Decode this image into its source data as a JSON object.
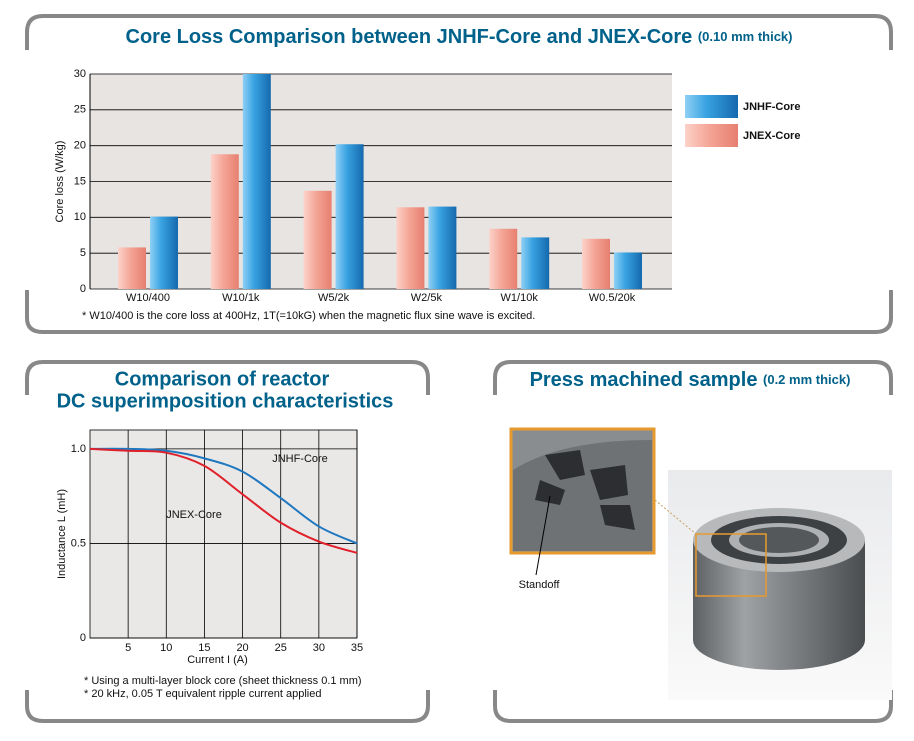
{
  "chart_data": [
    {
      "type": "bar",
      "title": "Core Loss Comparison between JNHF-Core and JNEX-Core",
      "subtitle": "(0.10 mm thick)",
      "y_label": "Core loss (W/kg)",
      "categories": [
        "W10/400",
        "W10/1k",
        "W5/2k",
        "W2/5k",
        "W1/10k",
        "W0.5/20k"
      ],
      "series": [
        {
          "name": "JNHF-Core",
          "color": "#1f7fc4",
          "values": [
            10.1,
            30,
            20.2,
            11.5,
            7.2,
            5.1
          ]
        },
        {
          "name": "JNEX-Core",
          "color": "#f09a8c",
          "values": [
            5.8,
            18.8,
            13.7,
            11.4,
            8.4,
            7.0
          ]
        }
      ],
      "ylim": [
        0,
        30
      ],
      "yticks": [
        0,
        5,
        10,
        15,
        20,
        25,
        30
      ],
      "grid": true,
      "note": "* W10/400 is the core loss at 400Hz, 1T(=10kG) when the magnetic flux sine wave is excited."
    },
    {
      "type": "line",
      "title": [
        "Comparison of reactor",
        "DC superimposition characteristics"
      ],
      "x_label": "Current I (A)",
      "y_label": "Inductance L (mH)",
      "x": [
        0,
        5,
        10,
        15,
        20,
        25,
        30,
        35
      ],
      "series": [
        {
          "name": "JNHF-Core",
          "color": "#1f77c0",
          "values": [
            1.0,
            1.0,
            0.99,
            0.95,
            0.88,
            0.74,
            0.59,
            0.5
          ]
        },
        {
          "name": "JNEX-Core",
          "color": "#e0202a",
          "values": [
            1.0,
            0.99,
            0.98,
            0.91,
            0.76,
            0.61,
            0.51,
            0.45
          ]
        }
      ],
      "xlim": [
        0,
        35
      ],
      "xticks": [
        5,
        10,
        15,
        20,
        25,
        30,
        35
      ],
      "ylim": [
        0,
        1.1
      ],
      "yticks": [
        0,
        0.5,
        {
          "value": 1,
          "label": "1.0"
        }
      ],
      "grid": true,
      "notes": [
        "* Using a multi-layer block core (sheet thickness 0.1 mm)",
        "* 20 kHz, 0.05 T equivalent ripple current applied"
      ]
    }
  ],
  "photo_panel": {
    "title": "Press machined sample",
    "subtitle": "(0.2 mm thick)",
    "label": "Standoff"
  }
}
